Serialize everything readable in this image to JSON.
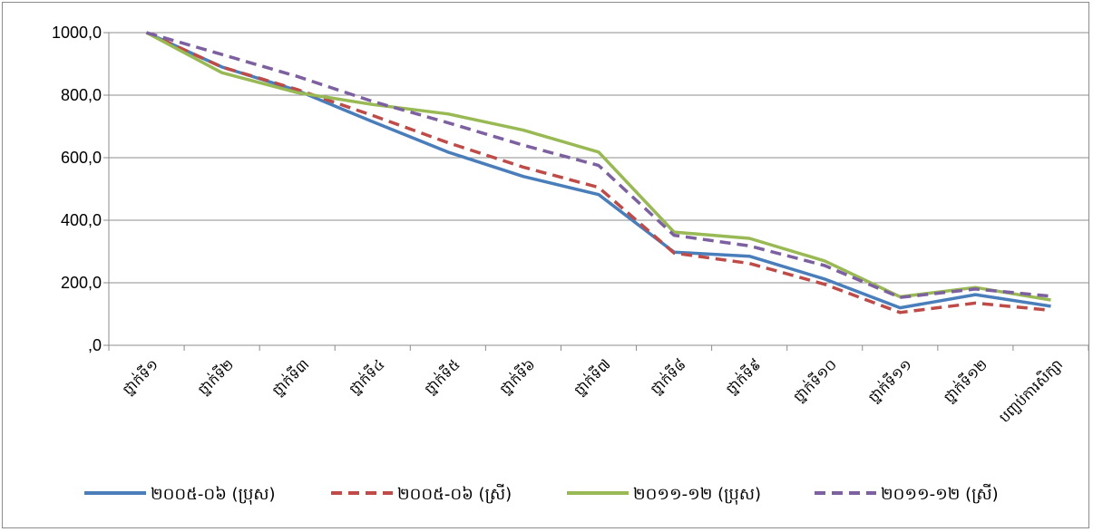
{
  "chart_data": {
    "type": "line",
    "title": "",
    "xlabel": "",
    "ylabel": "",
    "ylim": [
      0,
      1000
    ],
    "yticks": [
      {
        "value": 0,
        "label": ",0"
      },
      {
        "value": 200,
        "label": "200,0"
      },
      {
        "value": 400,
        "label": "400,0"
      },
      {
        "value": 600,
        "label": "600,0"
      },
      {
        "value": 800,
        "label": "800,0"
      },
      {
        "value": 1000,
        "label": "1000,0"
      }
    ],
    "grid": true,
    "legend_position": "bottom",
    "categories": [
      "ថ្នាក់ទី១",
      "ថ្នាក់ទី២",
      "ថ្នាក់ទី៣",
      "ថ្នាក់ទី៤",
      "ថ្នាក់ទី៥",
      "ថ្នាក់ទី៦",
      "ថ្នាក់ទី៧",
      "ថ្នាក់ទី៨",
      "ថ្នាក់ទី៩",
      "ថ្នាក់ទី១០",
      "ថ្នាក់ទី១១",
      "ថ្នាក់ទី១២",
      "បញ្ចប់ការសិក្សា"
    ],
    "series": [
      {
        "name": "២០០៥-០៦ (ប្រុស)",
        "color": "#4a7ebb",
        "dash": "solid",
        "values": [
          1000,
          890,
          815,
          715,
          618,
          540,
          482,
          298,
          285,
          212,
          120,
          162,
          125
        ]
      },
      {
        "name": "២០០៥-០៦ (ស្រី)",
        "color": "#be4b48",
        "dash": "dashed",
        "values": [
          1000,
          890,
          818,
          735,
          648,
          570,
          505,
          295,
          262,
          195,
          105,
          135,
          112
        ]
      },
      {
        "name": "២០១១-១២ (ប្រុស)",
        "color": "#98b954",
        "dash": "solid",
        "values": [
          1000,
          872,
          808,
          770,
          740,
          688,
          618,
          362,
          342,
          270,
          155,
          185,
          145
        ]
      },
      {
        "name": "២០១១-១២ (ស្រី)",
        "color": "#7d60a0",
        "dash": "dashed",
        "values": [
          1000,
          930,
          860,
          780,
          712,
          640,
          575,
          352,
          318,
          255,
          153,
          180,
          157
        ]
      }
    ]
  }
}
